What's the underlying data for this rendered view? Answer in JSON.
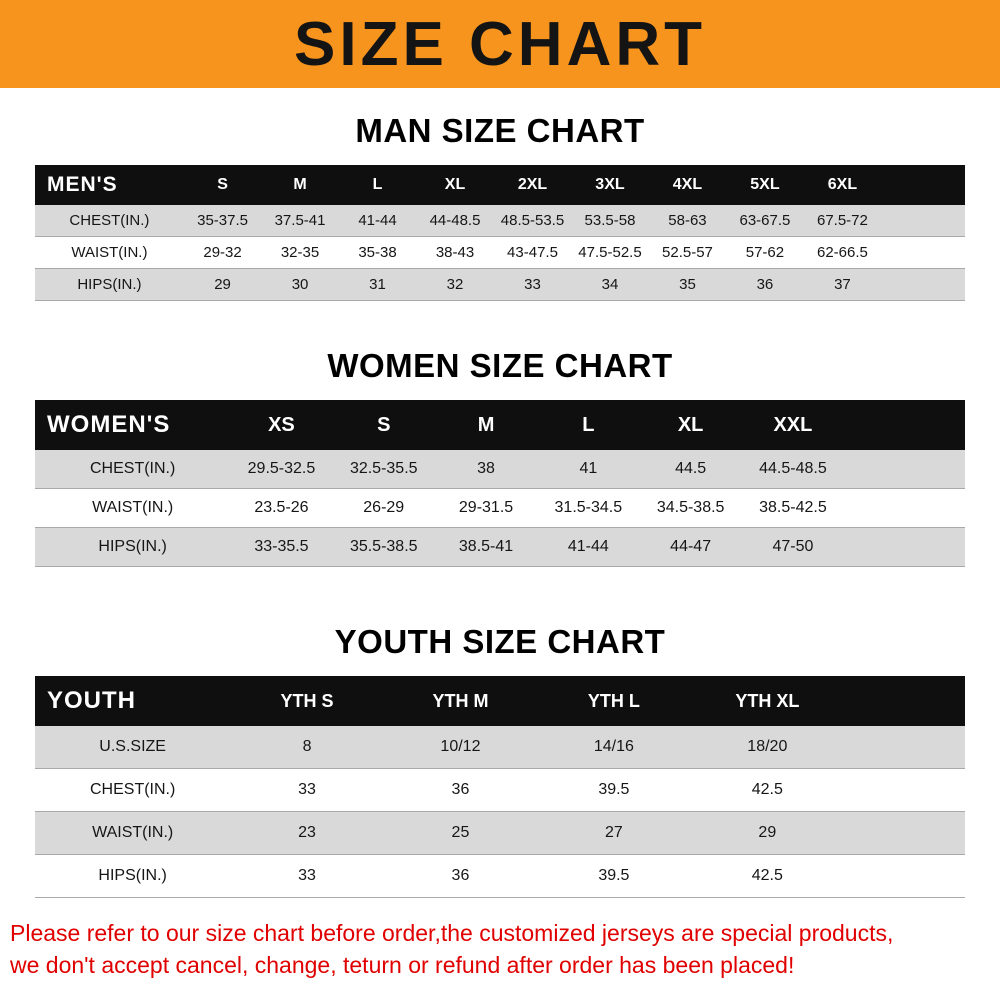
{
  "banner": {
    "title": "SIZE CHART"
  },
  "colors": {
    "banner_bg": "#F7941D",
    "table_header_bg": "#0f0f0f",
    "row_stripe": "#d9d9d9",
    "notice_text": "#e00000"
  },
  "sections": [
    {
      "id": "men",
      "heading": "MAN SIZE CHART",
      "label": "MEN'S",
      "columns": [
        "S",
        "M",
        "L",
        "XL",
        "2XL",
        "3XL",
        "4XL",
        "5XL",
        "6XL"
      ],
      "rows": [
        {
          "label": "CHEST(IN.)",
          "values": [
            "35-37.5",
            "37.5-41",
            "41-44",
            "44-48.5",
            "48.5-53.5",
            "53.5-58",
            "58-63",
            "63-67.5",
            "67.5-72"
          ]
        },
        {
          "label": "WAIST(IN.)",
          "values": [
            "29-32",
            "32-35",
            "35-38",
            "38-43",
            "43-47.5",
            "47.5-52.5",
            "52.5-57",
            "57-62",
            "62-66.5"
          ]
        },
        {
          "label": "HIPS(IN.)",
          "values": [
            "29",
            "30",
            "31",
            "32",
            "33",
            "34",
            "35",
            "36",
            "37"
          ]
        }
      ]
    },
    {
      "id": "women",
      "heading": "WOMEN SIZE CHART",
      "label": "WOMEN'S",
      "columns": [
        "XS",
        "S",
        "M",
        "L",
        "XL",
        "XXL"
      ],
      "rows": [
        {
          "label": "CHEST(IN.)",
          "values": [
            "29.5-32.5",
            "32.5-35.5",
            "38",
            "41",
            "44.5",
            "44.5-48.5"
          ]
        },
        {
          "label": "WAIST(IN.)",
          "values": [
            "23.5-26",
            "26-29",
            "29-31.5",
            "31.5-34.5",
            "34.5-38.5",
            "38.5-42.5"
          ]
        },
        {
          "label": "HIPS(IN.)",
          "values": [
            "33-35.5",
            "35.5-38.5",
            "38.5-41",
            "41-44",
            "44-47",
            "47-50"
          ]
        }
      ]
    },
    {
      "id": "youth",
      "heading": "YOUTH SIZE CHART",
      "label": "YOUTH",
      "columns": [
        "YTH S",
        "YTH M",
        "YTH L",
        "YTH XL"
      ],
      "rows": [
        {
          "label": "U.S.SIZE",
          "values": [
            "8",
            "10/12",
            "14/16",
            "18/20"
          ]
        },
        {
          "label": "CHEST(IN.)",
          "values": [
            "33",
            "36",
            "39.5",
            "42.5"
          ]
        },
        {
          "label": "WAIST(IN.)",
          "values": [
            "23",
            "25",
            "27",
            "29"
          ]
        },
        {
          "label": "HIPS(IN.)",
          "values": [
            "33",
            "36",
            "39.5",
            "42.5"
          ]
        }
      ]
    }
  ],
  "notice": {
    "lines": [
      "Please refer to our size chart before order,the customized jerseys are special products,",
      "we don't accept cancel, change, teturn or refund after order has been placed!"
    ]
  }
}
